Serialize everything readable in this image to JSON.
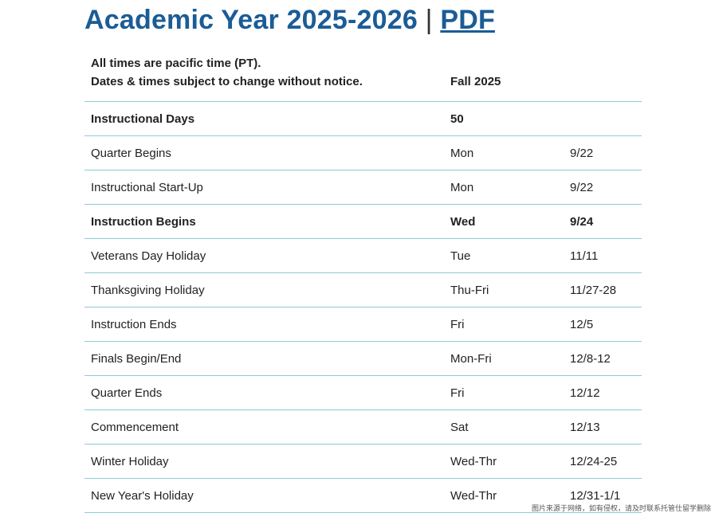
{
  "header": {
    "title": "Academic Year 2025-2026",
    "separator": "|",
    "link": "PDF"
  },
  "table": {
    "notes": [
      "All times are pacific time (PT).",
      "Dates & times subject to change without notice."
    ],
    "term": "Fall 2025",
    "rows": [
      [
        "Instructional Days",
        "50",
        ""
      ],
      [
        "Quarter Begins",
        "Mon",
        "9/22"
      ],
      [
        "Instructional Start-Up",
        "Mon",
        "9/22"
      ],
      [
        "Instruction Begins",
        "Wed",
        "9/24"
      ],
      [
        "Veterans Day Holiday",
        "Tue",
        "11/11"
      ],
      [
        "Thanksgiving Holiday",
        "Thu-Fri",
        "11/27-28"
      ],
      [
        "Instruction Ends",
        "Fri",
        "12/5"
      ],
      [
        "Finals Begin/End",
        "Mon-Fri",
        "12/8-12"
      ],
      [
        "Quarter Ends",
        "Fri",
        "12/12"
      ],
      [
        "Commencement",
        "Sat",
        "12/13"
      ],
      [
        "Winter Holiday",
        "Wed-Thr",
        "12/24-25"
      ],
      [
        "New Year's Holiday",
        "Wed-Thr",
        "12/31-1/1"
      ]
    ]
  },
  "watermark": "图片来源于网络，如有侵权，请及时联系托管仕留学删除"
}
